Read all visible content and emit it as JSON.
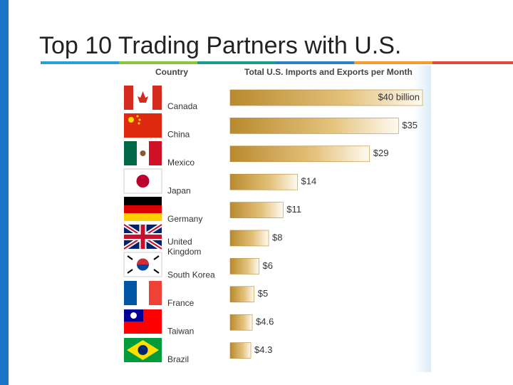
{
  "chart_data": {
    "type": "bar",
    "orientation": "horizontal",
    "title": "Top 10 Trading Partners with U.S.",
    "category_header": "Country",
    "value_header": "Total U.S. Imports and Exports per Month",
    "categories": [
      "Canada",
      "China",
      "Mexico",
      "Japan",
      "Germany",
      "United Kingdom",
      "South Korea",
      "France",
      "Taiwan",
      "Brazil"
    ],
    "values": [
      40,
      35,
      29,
      14,
      11,
      8,
      6,
      5,
      4.6,
      4.3
    ],
    "value_labels": [
      "$40 billion",
      "$35",
      "$29",
      "$14",
      "$11",
      "$8",
      "$6",
      "$5",
      "$4.6",
      "$4.3"
    ],
    "color": "#b98a2e"
  }
}
